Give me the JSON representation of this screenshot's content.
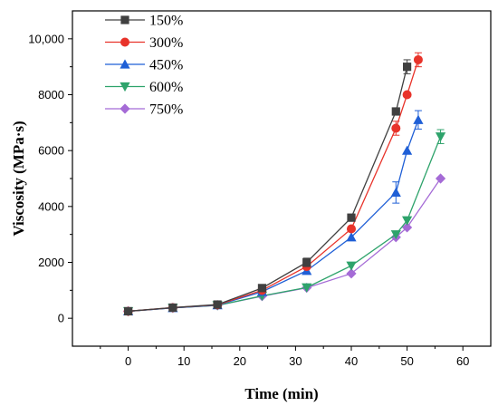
{
  "chart_data": {
    "type": "line",
    "xlabel": "Time (min)",
    "ylabel": "Viscosity (MPa·s)",
    "xlim": [
      -10,
      65
    ],
    "ylim": [
      -1000,
      11000
    ],
    "x_ticks": [
      0,
      10,
      20,
      30,
      40,
      50,
      60
    ],
    "x_tick_labels": [
      "0",
      "10",
      "20",
      "30",
      "40",
      "50",
      "60"
    ],
    "y_ticks": [
      0,
      2000,
      4000,
      6000,
      8000,
      10000
    ],
    "y_tick_labels": [
      "0",
      "2000",
      "4000",
      "6000",
      "8000",
      "10,000"
    ],
    "grid": false,
    "legend_position": "top-left",
    "series": [
      {
        "name": "150%",
        "color": "#404040",
        "marker": "square",
        "x": [
          0,
          8,
          16,
          24,
          32,
          40,
          48,
          50
        ],
        "values": [
          250,
          380,
          490,
          1080,
          2000,
          3600,
          7400,
          9000
        ],
        "errors": [
          0,
          0,
          0,
          80,
          150,
          0,
          0,
          250
        ]
      },
      {
        "name": "300%",
        "color": "#e8332a",
        "marker": "circle",
        "x": [
          0,
          8,
          16,
          24,
          32,
          40,
          48,
          50,
          52
        ],
        "values": [
          250,
          380,
          480,
          1000,
          1850,
          3200,
          6800,
          8000,
          9250
        ],
        "errors": [
          0,
          0,
          0,
          0,
          0,
          0,
          250,
          0,
          250
        ]
      },
      {
        "name": "450%",
        "color": "#1f5fd6",
        "marker": "triangle-up",
        "x": [
          0,
          8,
          16,
          24,
          32,
          40,
          48,
          50,
          52
        ],
        "values": [
          250,
          370,
          470,
          950,
          1700,
          2900,
          4500,
          6000,
          7100
        ],
        "errors": [
          0,
          0,
          0,
          0,
          0,
          0,
          380,
          0,
          330
        ]
      },
      {
        "name": "600%",
        "color": "#2ea36b",
        "marker": "triangle-down",
        "x": [
          0,
          8,
          16,
          24,
          32,
          40,
          48,
          50,
          56
        ],
        "values": [
          250,
          370,
          460,
          800,
          1100,
          1880,
          3000,
          3500,
          6500
        ],
        "errors": [
          0,
          0,
          0,
          0,
          0,
          0,
          0,
          0,
          250
        ]
      },
      {
        "name": "750%",
        "color": "#a56bd6",
        "marker": "diamond",
        "x": [
          0,
          8,
          16,
          24,
          32,
          40,
          48,
          50,
          56
        ],
        "values": [
          250,
          370,
          460,
          790,
          1090,
          1600,
          2900,
          3250,
          5000
        ],
        "errors": [
          0,
          0,
          0,
          0,
          0,
          0,
          0,
          0,
          0
        ]
      }
    ]
  }
}
